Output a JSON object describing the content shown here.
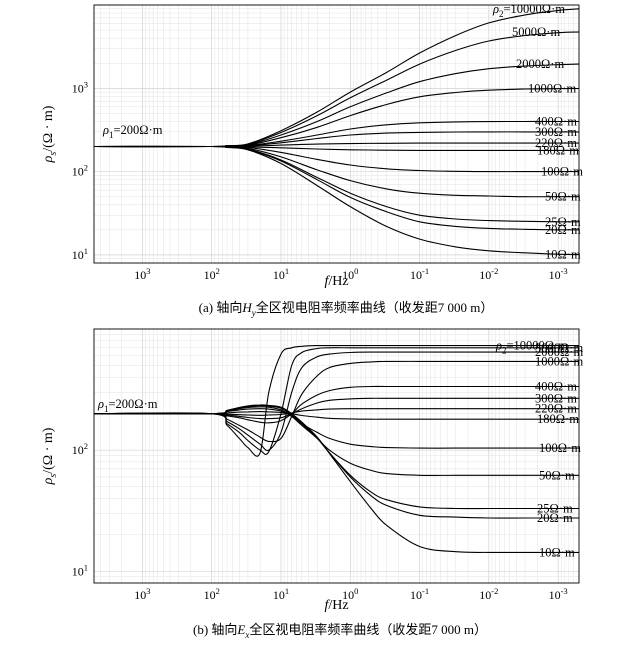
{
  "chart_data": [
    {
      "type": "line",
      "caption": "(a) 轴向H_y全区视电阻率频率曲线（收发距7 000 m）",
      "caption_parts": [
        "(a) 轴向",
        "H",
        "y",
        "全区视电阻率频率曲线（收发距7 000 m）"
      ],
      "xlabel": "f/Hz",
      "ylabel": "ρs/(Ω · m)",
      "xscale": "log",
      "yscale": "log",
      "x_reversed": true,
      "xlim": [
        5000,
        0.0005
      ],
      "ylim": [
        8,
        10000
      ],
      "x_ticks": [
        {
          "value": 1000,
          "base": "10",
          "exp": "3"
        },
        {
          "value": 100,
          "base": "10",
          "exp": "2"
        },
        {
          "value": 10,
          "base": "10",
          "exp": "1"
        },
        {
          "value": 1,
          "base": "10",
          "exp": "0"
        },
        {
          "value": 0.1,
          "base": "10",
          "exp": "-1"
        },
        {
          "value": 0.01,
          "base": "10",
          "exp": "-2"
        },
        {
          "value": 0.001,
          "base": "10",
          "exp": "-3"
        }
      ],
      "y_ticks": [
        {
          "value": 10,
          "base": "10",
          "exp": "1"
        },
        {
          "value": 100,
          "base": "10",
          "exp": "2"
        },
        {
          "value": 1000,
          "base": "10",
          "exp": "3"
        }
      ],
      "rho1_label": "ρ1=200Ω·m",
      "x": [
        5000,
        100,
        60,
        30,
        10,
        3,
        1,
        0.3,
        0.1,
        0.03,
        0.01,
        0.003,
        0.001,
        0.0005
      ],
      "series": [
        {
          "name": "ρ2=10000Ω·m",
          "values": [
            200,
            200,
            205,
            215,
            310,
            520,
            900,
            1550,
            2650,
            4300,
            6100,
            7600,
            8600,
            9000
          ]
        },
        {
          "name": "5000Ω·m",
          "values": [
            200,
            200,
            205,
            213,
            295,
            470,
            770,
            1250,
            1950,
            2850,
            3700,
            4300,
            4650,
            4750
          ]
        },
        {
          "name": "2000Ω·m",
          "values": [
            200,
            200,
            204,
            210,
            275,
            400,
            600,
            880,
            1200,
            1500,
            1720,
            1850,
            1920,
            1950
          ]
        },
        {
          "name": "1000Ω·m",
          "values": [
            200,
            200,
            203,
            208,
            255,
            340,
            470,
            640,
            790,
            890,
            950,
            980,
            990,
            995
          ]
        },
        {
          "name": "400Ω·m",
          "values": [
            200,
            200,
            202,
            205,
            232,
            275,
            325,
            365,
            385,
            395,
            399,
            400,
            400,
            400
          ]
        },
        {
          "name": "300Ω·m",
          "values": [
            200,
            200,
            201,
            204,
            222,
            250,
            275,
            290,
            296,
            299,
            300,
            300,
            300,
            300
          ]
        },
        {
          "name": "220Ω·m",
          "values": [
            200,
            200,
            201,
            202,
            208,
            214,
            217,
            219,
            220,
            220,
            220,
            220,
            220,
            220
          ]
        },
        {
          "name": "180Ω·m",
          "values": [
            200,
            200,
            199,
            198,
            193,
            187,
            183,
            181,
            180,
            180,
            180,
            180,
            180,
            180
          ]
        },
        {
          "name": "100Ω·m",
          "values": [
            200,
            200,
            198,
            195,
            170,
            140,
            120,
            108,
            103,
            101,
            100,
            100,
            100,
            100
          ]
        },
        {
          "name": "50Ω·m",
          "values": [
            200,
            200,
            197,
            190,
            150,
            105,
            78,
            62,
            55,
            52,
            51,
            50,
            50,
            50
          ]
        },
        {
          "name": "25Ω·m",
          "values": [
            200,
            200,
            196,
            186,
            138,
            85,
            55,
            38,
            30,
            27,
            25.8,
            25.3,
            25,
            25
          ]
        },
        {
          "name": "20Ω·m",
          "values": [
            200,
            200,
            196,
            185,
            134,
            80,
            49,
            33,
            25,
            22,
            20.8,
            20.3,
            20,
            20
          ]
        },
        {
          "name": "10Ω·m",
          "values": [
            200,
            200,
            195,
            183,
            125,
            68,
            38,
            22,
            15.5,
            12.5,
            11.2,
            10.6,
            10.2,
            10.1
          ]
        }
      ]
    },
    {
      "type": "line",
      "caption": "(b) 轴向E_x全区视电阻率频率曲线（收发距7 000 m）",
      "caption_parts": [
        "(b) 轴向",
        "E",
        "x",
        "全区视电阻率频率曲线（收发距7 000 m）"
      ],
      "xlabel": "f/Hz",
      "ylabel": "ρs/(Ω · m)",
      "xscale": "log",
      "yscale": "log",
      "x_reversed": true,
      "xlim": [
        5000,
        0.0005
      ],
      "ylim": [
        8,
        1000
      ],
      "x_ticks": [
        {
          "value": 1000,
          "base": "10",
          "exp": "3"
        },
        {
          "value": 100,
          "base": "10",
          "exp": "2"
        },
        {
          "value": 10,
          "base": "10",
          "exp": "1"
        },
        {
          "value": 1,
          "base": "10",
          "exp": "0"
        },
        {
          "value": 0.1,
          "base": "10",
          "exp": "-1"
        },
        {
          "value": 0.01,
          "base": "10",
          "exp": "-2"
        },
        {
          "value": 0.001,
          "base": "10",
          "exp": "-3"
        }
      ],
      "y_ticks": [
        {
          "value": 10,
          "base": "10",
          "exp": "1"
        },
        {
          "value": 100,
          "base": "10",
          "exp": "2"
        }
      ],
      "rho1_label": "ρ1=200Ω·m",
      "x": [
        5000,
        100,
        60,
        40,
        30,
        20,
        15,
        10,
        7,
        5,
        3,
        2,
        1,
        0.5,
        0.3,
        0.1,
        0.03,
        0.01,
        0.003,
        0.001,
        0.0005
      ],
      "series": [
        {
          "name": "ρ2=10000Ω·m",
          "values": [
            200,
            200,
            160,
            125,
            105,
            95,
            300,
            620,
            700,
            720,
            730,
            730,
            730,
            730,
            730,
            730,
            730,
            730,
            730,
            730,
            730
          ]
        },
        {
          "name": "5000Ω·m",
          "values": [
            200,
            200,
            165,
            140,
            120,
            100,
            97,
            200,
            500,
            640,
            690,
            700,
            700,
            700,
            700,
            700,
            700,
            700,
            700,
            700,
            700
          ]
        },
        {
          "name": "2000Ω·m",
          "values": [
            200,
            200,
            172,
            150,
            133,
            112,
            100,
            140,
            300,
            480,
            590,
            620,
            640,
            645,
            645,
            645,
            645,
            645,
            645,
            645,
            645
          ]
        },
        {
          "name": "1000Ω·m",
          "values": [
            200,
            200,
            180,
            160,
            147,
            128,
            118,
            125,
            190,
            290,
            410,
            480,
            520,
            535,
            540,
            540,
            540,
            540,
            540,
            540,
            540
          ]
        },
        {
          "name": "400Ω·m",
          "values": [
            200,
            200,
            192,
            185,
            178,
            170,
            168,
            175,
            200,
            240,
            285,
            310,
            330,
            335,
            335,
            335,
            335,
            335,
            335,
            335,
            335
          ]
        },
        {
          "name": "300Ω·m",
          "values": [
            200,
            200,
            195,
            190,
            186,
            182,
            182,
            185,
            200,
            220,
            245,
            258,
            265,
            268,
            268,
            268,
            268,
            268,
            268,
            268,
            268
          ]
        },
        {
          "name": "220Ω·m",
          "values": [
            200,
            200,
            198,
            196,
            195,
            194,
            195,
            197,
            203,
            210,
            215,
            218,
            220,
            220,
            220,
            220,
            220,
            220,
            220,
            220,
            220
          ]
        },
        {
          "name": "180Ω·m",
          "values": [
            200,
            200,
            203,
            206,
            207,
            208,
            207,
            205,
            200,
            193,
            187,
            183,
            181,
            180,
            180,
            180,
            180,
            180,
            180,
            180,
            180
          ]
        },
        {
          "name": "100Ω·m",
          "values": [
            200,
            200,
            208,
            215,
            218,
            220,
            218,
            210,
            190,
            165,
            140,
            125,
            112,
            107,
            105,
            104,
            104,
            104,
            104,
            104,
            104
          ]
        },
        {
          "name": "50Ω·m",
          "values": [
            200,
            200,
            210,
            220,
            225,
            228,
            226,
            215,
            190,
            160,
            125,
            100,
            78,
            68,
            64,
            62,
            62,
            62,
            62,
            62,
            62
          ]
        },
        {
          "name": "25Ω·m",
          "values": [
            200,
            200,
            212,
            223,
            229,
            233,
            231,
            222,
            195,
            165,
            125,
            95,
            62,
            45,
            39,
            34,
            33,
            33,
            33,
            33,
            33
          ]
        },
        {
          "name": "20Ω·m",
          "values": [
            200,
            200,
            212,
            224,
            230,
            234,
            232,
            223,
            197,
            166,
            126,
            95,
            60,
            42,
            35,
            29,
            28,
            27.5,
            27.5,
            27.5,
            27.5
          ]
        },
        {
          "name": "10Ω·m",
          "values": [
            200,
            200,
            213,
            225,
            232,
            236,
            234,
            226,
            200,
            170,
            128,
            94,
            55,
            33,
            24,
            16,
            14.5,
            14.3,
            14.3,
            14.3,
            14.3
          ]
        }
      ]
    }
  ]
}
